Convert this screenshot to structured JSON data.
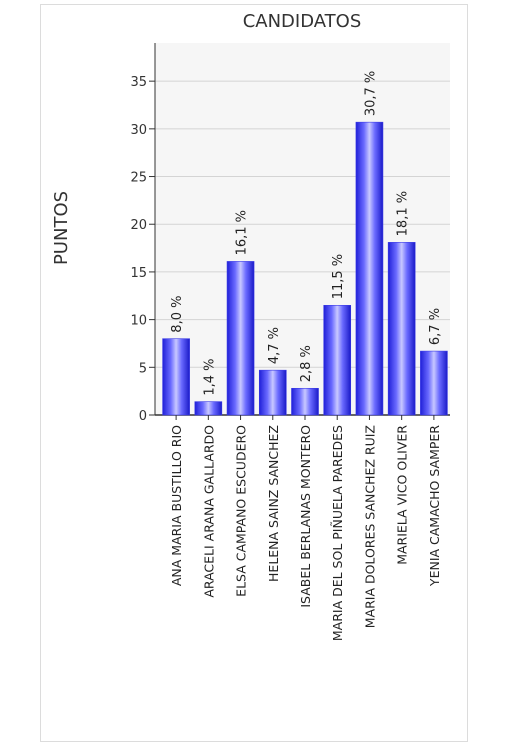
{
  "chart_data": {
    "type": "bar",
    "title": "CANDIDATOS",
    "xlabel": "",
    "ylabel": "PUNTOS",
    "ylim": [
      0,
      39
    ],
    "yticks": [
      0,
      5,
      10,
      15,
      20,
      25,
      30,
      35
    ],
    "grid": true,
    "legend": "none",
    "bar_color": "#3a3ae6",
    "categories": [
      "ANA MARIA BUSTILLO RIO",
      "ARACELI ARANA GALLARDO",
      "ELSA CAMPANO ESCUDERO",
      "HELENA SAINZ SANCHEZ",
      "ISABEL BERLANAS MONTERO",
      "MARIA DEL SOL PIÑUELA PAREDES",
      "MARIA DOLORES SANCHEZ RUIZ",
      "MARIELA VICO OLIVER",
      "YENIA CAMACHO SAMPER"
    ],
    "values": [
      8.0,
      1.4,
      16.1,
      4.7,
      2.8,
      11.5,
      30.7,
      18.1,
      6.7
    ],
    "data_labels": [
      "8,0 %",
      "1,4 %",
      "16,1 %",
      "4,7 %",
      "2,8 %",
      "11,5 %",
      "30,7 %",
      "18,1 %",
      "6,7 %"
    ]
  }
}
